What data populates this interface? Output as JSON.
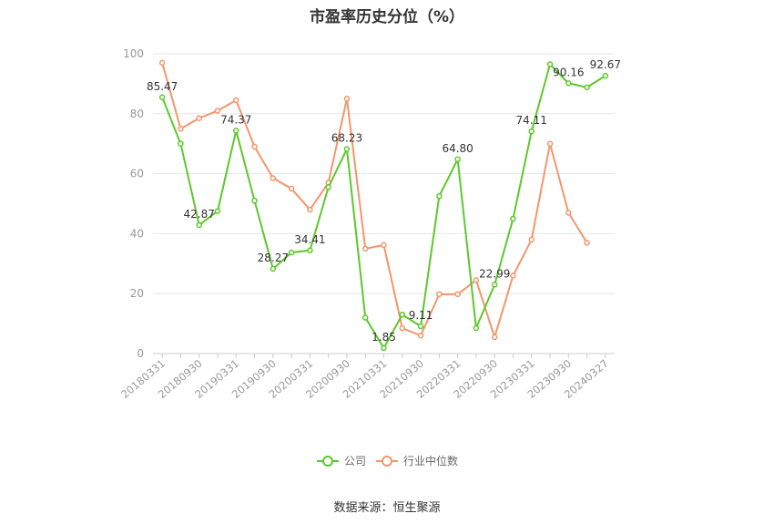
{
  "title": "市盈率历史分位（%）",
  "source": "数据来源：恒生聚源",
  "legend": {
    "company": "公司",
    "industry": "行业中位数"
  },
  "colors": {
    "company": "#5cc82a",
    "industry": "#f4956b",
    "grid": "#e6e6e6",
    "axis": "#cccccc",
    "text": "#999999"
  },
  "chart_data": {
    "type": "line",
    "title": "市盈率历史分位（%）",
    "xlabel": "",
    "ylabel": "",
    "ylim": [
      0,
      100
    ],
    "yticks": [
      0,
      20,
      40,
      60,
      80,
      100
    ],
    "grid": true,
    "legend_position": "bottom",
    "x": [
      "20180331",
      "20180630",
      "20180930",
      "20181231",
      "20190331",
      "20190630",
      "20190930",
      "20191231",
      "20200331",
      "20200630",
      "20200930",
      "20201231",
      "20210331",
      "20210630",
      "20210930",
      "20211231",
      "20220331",
      "20220630",
      "20220930",
      "20221231",
      "20230331",
      "20230630",
      "20230930",
      "20231231",
      "20240327"
    ],
    "xtick_labels": [
      "20180331",
      "20180930",
      "20190331",
      "20190930",
      "20200331",
      "20200930",
      "20210331",
      "20210930",
      "20220331",
      "20220930",
      "20230331",
      "20230930",
      "20240327"
    ],
    "series": [
      {
        "name": "公司",
        "values": [
          85.47,
          70.0,
          42.87,
          47.5,
          74.37,
          51.0,
          28.27,
          33.7,
          34.41,
          55.5,
          68.23,
          12.0,
          1.85,
          13.0,
          9.11,
          52.5,
          64.8,
          8.5,
          22.99,
          45.0,
          74.11,
          96.5,
          90.16,
          88.8,
          92.67
        ],
        "labels": [
          "85.47",
          "",
          "42.87",
          "",
          "74.37",
          "",
          "28.27",
          "",
          "34.41",
          "",
          "68.23",
          "",
          "1.85",
          "",
          "9.11",
          "",
          "64.80",
          "",
          "22.99",
          "",
          "74.11",
          "",
          "90.16",
          "",
          "92.67"
        ]
      },
      {
        "name": "行业中位数",
        "values": [
          97.0,
          75.0,
          78.5,
          81.0,
          84.5,
          69.0,
          58.5,
          55.0,
          48.0,
          57.0,
          85.0,
          35.0,
          36.2,
          8.5,
          6.0,
          19.8,
          19.8,
          24.5,
          5.5,
          26.0,
          38.0,
          70.0,
          47.0,
          37.0,
          null
        ]
      }
    ]
  }
}
